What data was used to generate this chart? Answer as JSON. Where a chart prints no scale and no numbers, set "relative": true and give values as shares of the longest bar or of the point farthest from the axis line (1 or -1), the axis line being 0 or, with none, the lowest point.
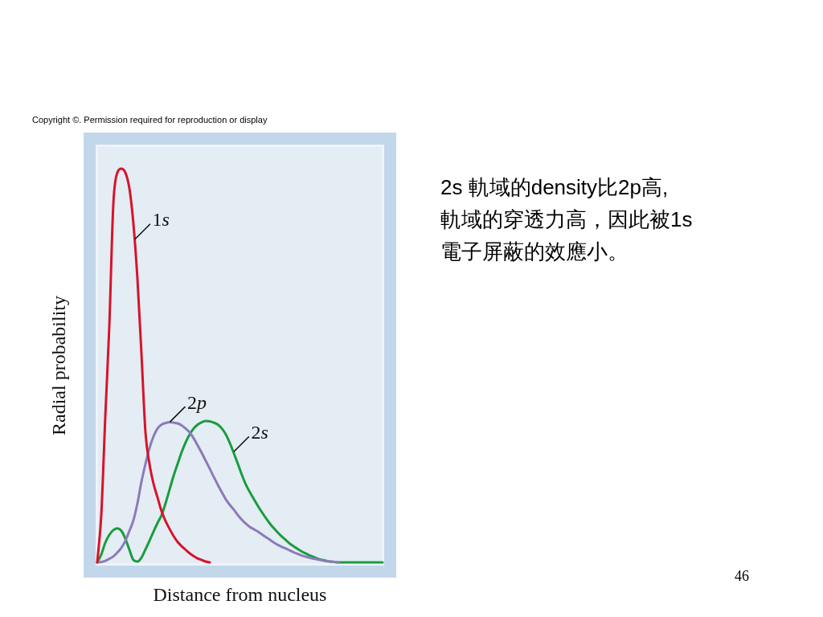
{
  "chart_data": {
    "type": "line",
    "relative": true,
    "xlabel": "Distance from nucleus",
    "ylabel": "Radial probability",
    "categories": [
      null,
      null,
      null,
      null,
      null,
      null,
      null,
      null,
      null,
      null,
      null,
      null,
      null,
      null,
      null,
      null,
      null,
      null,
      null,
      null,
      null,
      null,
      null,
      null,
      null,
      null,
      null,
      null,
      null,
      null,
      null,
      null,
      null,
      null,
      null,
      null,
      null,
      null,
      null,
      null,
      null,
      null,
      null,
      null,
      null,
      null,
      null,
      null,
      null,
      null,
      null,
      null,
      null,
      null,
      null,
      null,
      null,
      null,
      null,
      null,
      null,
      null,
      null,
      null,
      null,
      null,
      null,
      null,
      null,
      null,
      null,
      null
    ],
    "series": [
      {
        "name": "1s",
        "color": "#d7132a",
        "values": [
          0,
          0.12,
          0.37,
          0.6,
          0.91,
          0.99,
          1,
          0.99,
          0.95,
          0.86,
          0.72,
          0.53,
          0.33,
          0.25,
          0.2,
          0.165,
          0.13,
          0.105,
          0.085,
          0.067,
          0.052,
          0.041,
          0.032,
          0.023,
          0.016,
          0.01,
          0.006,
          0.002,
          0,
          null,
          null,
          null,
          null,
          null,
          null,
          null,
          null,
          null,
          null,
          null,
          null,
          null,
          null,
          null,
          null,
          null,
          null,
          null,
          null,
          null,
          null,
          null,
          null,
          null,
          null,
          null,
          null,
          null,
          null,
          null,
          null,
          null,
          null,
          null,
          null,
          null,
          null,
          null,
          null,
          null,
          null,
          null
        ]
      },
      {
        "name": "2p",
        "color": "#8b7bb8",
        "values": [
          0,
          0.001,
          0.004,
          0.009,
          0.015,
          0.025,
          0.037,
          0.055,
          0.08,
          0.107,
          0.15,
          0.205,
          0.25,
          0.29,
          0.32,
          0.34,
          0.35,
          0.354,
          0.356,
          0.355,
          0.353,
          0.348,
          0.34,
          0.33,
          0.315,
          0.297,
          0.278,
          0.258,
          0.238,
          0.217,
          0.197,
          0.178,
          0.16,
          0.146,
          0.134,
          0.12,
          0.108,
          0.098,
          0.09,
          0.084,
          0.078,
          0.071,
          0.064,
          0.057,
          0.05,
          0.044,
          0.039,
          0.035,
          0.03,
          0.025,
          0.021,
          0.017,
          0.014,
          0.011,
          0.009,
          0.007,
          0.005,
          0.003,
          0.002,
          0.001,
          0,
          null,
          null,
          null,
          null,
          null,
          null,
          null,
          null,
          null,
          null,
          null
        ]
      },
      {
        "name": "2s",
        "color": "#1a9c3e",
        "values": [
          0,
          0.02,
          0.05,
          0.07,
          0.082,
          0.086,
          0.08,
          0.06,
          0.032,
          0.006,
          0.002,
          0.012,
          0.033,
          0.055,
          0.078,
          0.1,
          0.12,
          0.15,
          0.185,
          0.22,
          0.25,
          0.28,
          0.305,
          0.325,
          0.34,
          0.35,
          0.356,
          0.359,
          0.358,
          0.355,
          0.35,
          0.34,
          0.325,
          0.303,
          0.277,
          0.25,
          0.222,
          0.197,
          0.178,
          0.16,
          0.143,
          0.127,
          0.112,
          0.098,
          0.086,
          0.075,
          0.065,
          0.056,
          0.047,
          0.04,
          0.033,
          0.027,
          0.022,
          0.017,
          0.013,
          0.009,
          0.006,
          0.004,
          0.002,
          0.001,
          0,
          0,
          0,
          0,
          0,
          0,
          0,
          0,
          0,
          0,
          0,
          0
        ]
      }
    ],
    "marker": "none",
    "legend": false,
    "grid": false,
    "tick_labels": false,
    "annotations": [
      "Copyright ©. Permission required for reproduction or display",
      "2s 軌域的density比2p高,\n軌域的穿透力高，因此被1s\n電子屏蔽的效應小。",
      "46"
    ]
  }
}
